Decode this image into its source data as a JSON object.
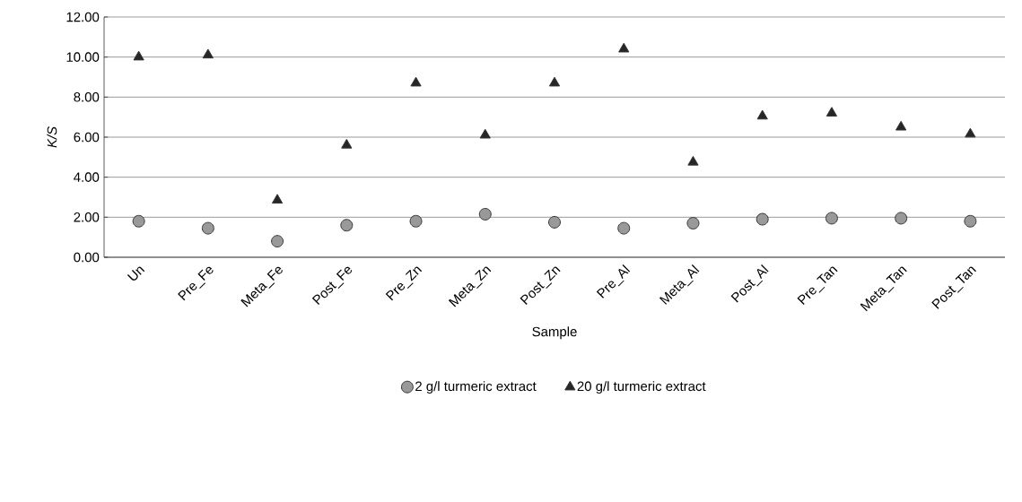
{
  "chart_data": {
    "type": "scatter",
    "xlabel": "Sample",
    "ylabel": "K/S",
    "categories": [
      "Un",
      "Pre_Fe",
      "Meta_Fe",
      "Post_Fe",
      "Pre_Zn",
      "Meta_Zn",
      "Post_Zn",
      "Pre_Al",
      "Meta_Al",
      "Post_Al",
      "Pre_Tan",
      "Meta_Tan",
      "Post_Tan"
    ],
    "series": [
      {
        "name": "2 g/l turmeric extract",
        "color": "#999999",
        "marker": "circle",
        "values": [
          1.8,
          1.45,
          0.8,
          1.6,
          1.8,
          2.15,
          1.75,
          1.45,
          1.7,
          1.9,
          1.95,
          1.95,
          1.8
        ]
      },
      {
        "name": "20 g/l turmeric extract",
        "color": "#262626",
        "marker": "triangle",
        "values": [
          10.0,
          10.1,
          2.85,
          5.6,
          8.7,
          6.1,
          8.7,
          10.4,
          4.75,
          7.05,
          7.2,
          6.5,
          6.15
        ]
      }
    ],
    "ylim": [
      0,
      12
    ],
    "yticks": [
      {
        "value": 0,
        "label": "0.00"
      },
      {
        "value": 2,
        "label": "2.00"
      },
      {
        "value": 4,
        "label": "4.00"
      },
      {
        "value": 6,
        "label": "6.00"
      },
      {
        "value": 8,
        "label": "8.00"
      },
      {
        "value": 10,
        "label": "10.00"
      },
      {
        "value": 12,
        "label": "12.00"
      }
    ],
    "grid": "y",
    "legend": "bottom"
  }
}
